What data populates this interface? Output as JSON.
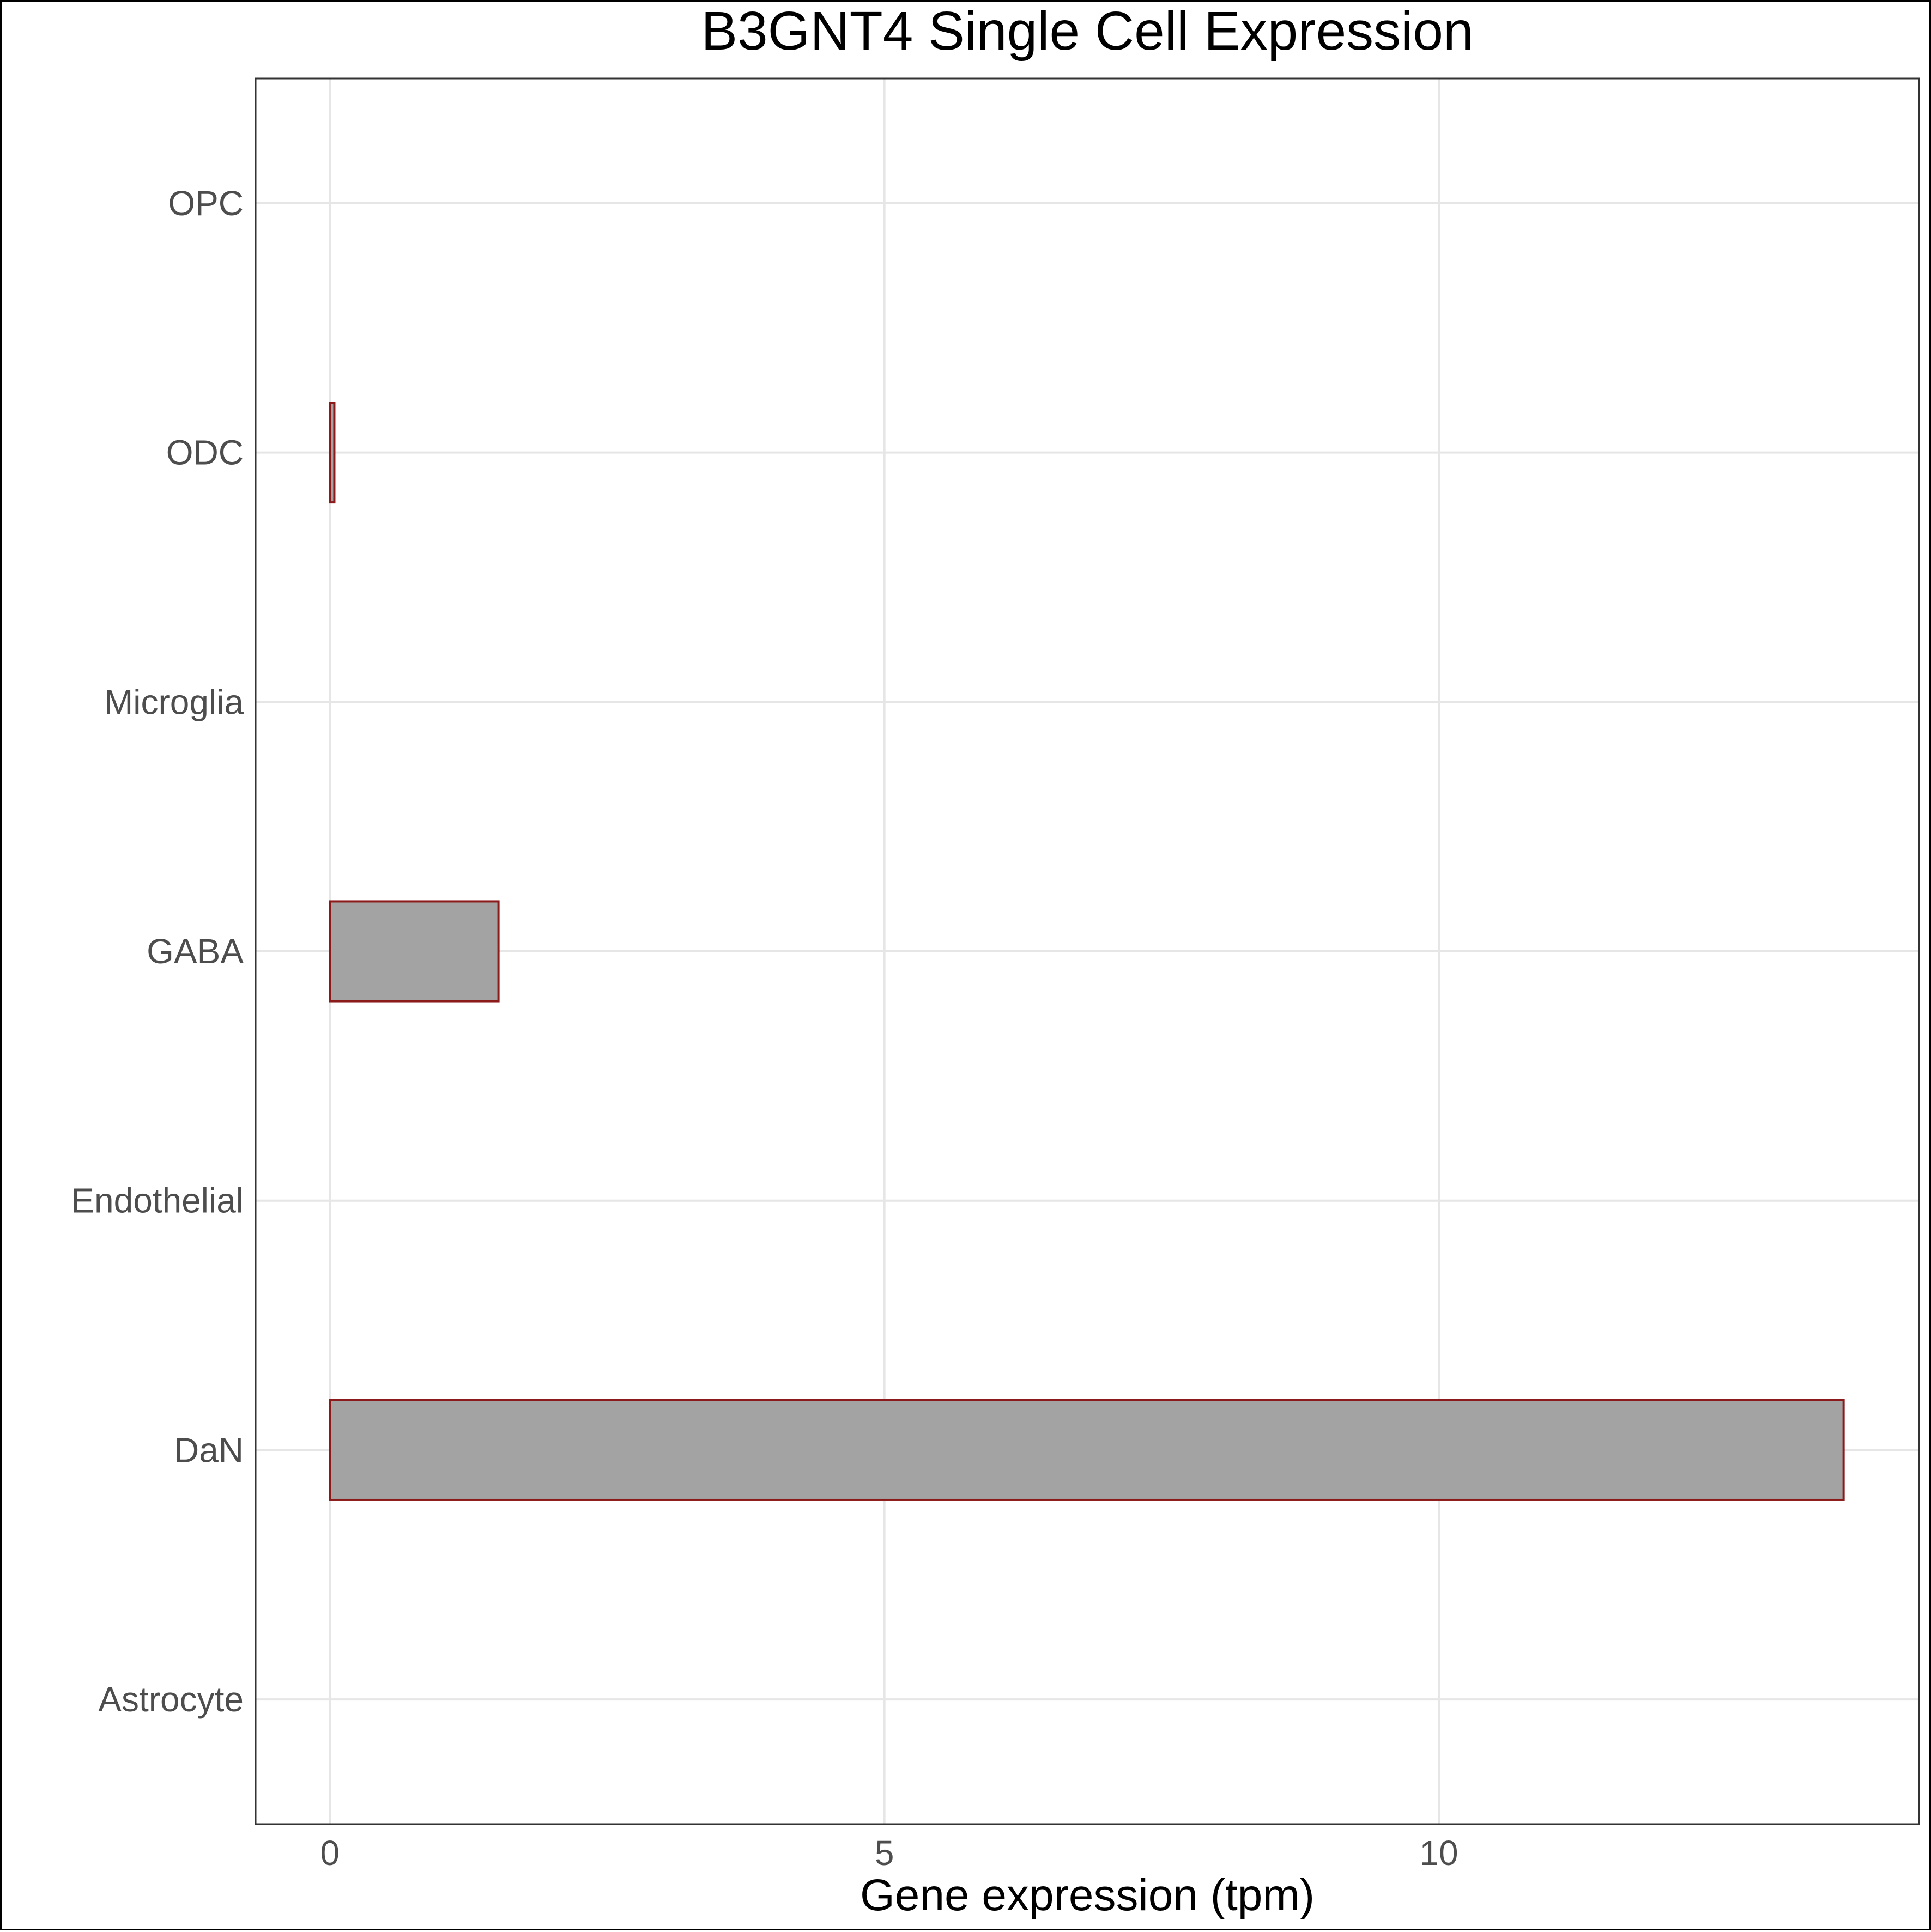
{
  "chart_data": {
    "type": "bar",
    "orientation": "horizontal",
    "title": "B3GNT4 Single Cell Expression",
    "xlabel": "Gene expression (tpm)",
    "ylabel": "",
    "categories": [
      "Astrocyte",
      "DaN",
      "Endothelial",
      "GABA",
      "Microglia",
      "ODC",
      "OPC"
    ],
    "values": [
      0.0,
      13.65,
      0.0,
      1.52,
      0.0,
      0.04,
      0.0
    ],
    "xlim": [
      -0.67,
      14.33
    ],
    "xticks": [
      0,
      5,
      10
    ],
    "xtick_labels": [
      "0",
      "5",
      "10"
    ],
    "grid": true,
    "legend": "none",
    "colors": {
      "bar_fill": "#a3a3a3",
      "bar_outline": "#8b1a1a",
      "grid": "#e6e6e6",
      "panel_border": "#333333"
    }
  }
}
